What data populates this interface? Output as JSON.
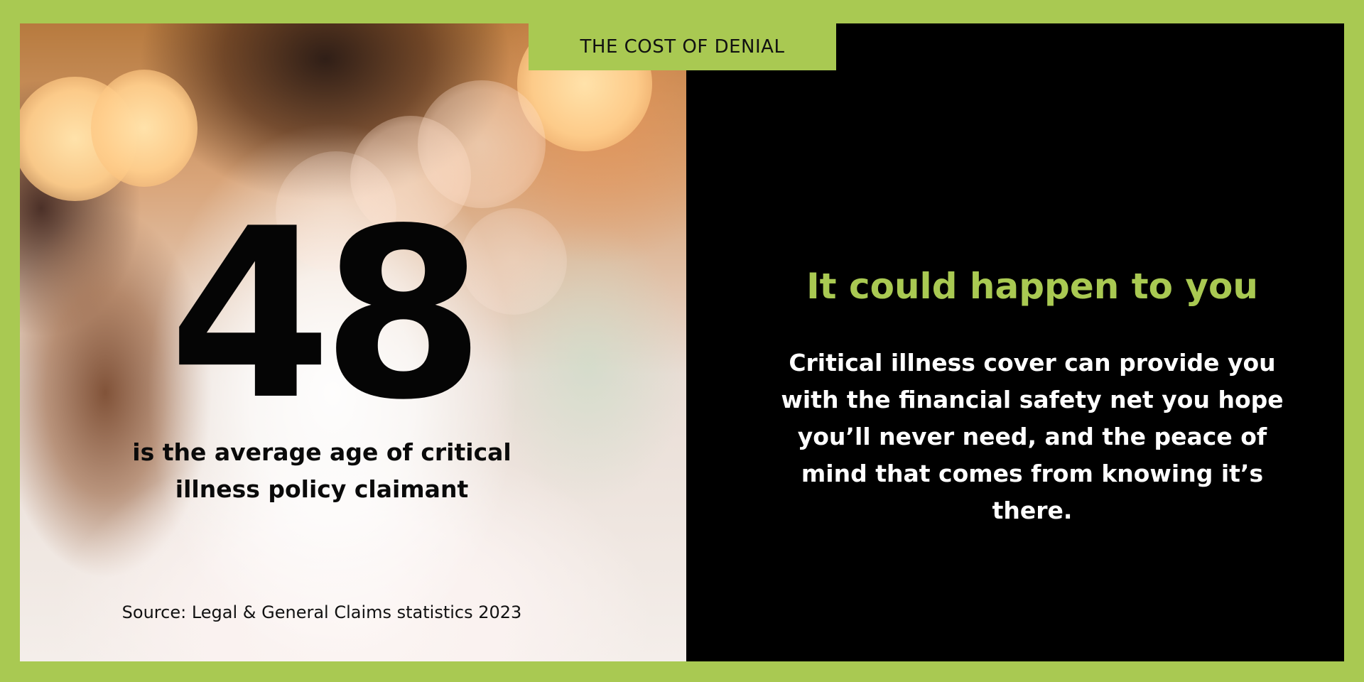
{
  "tab": {
    "label": "THE COST OF DENIAL"
  },
  "stat": {
    "number": "48",
    "caption": "is the average age of critical illness policy claimant",
    "source": "Source: Legal & General Claims statistics 2023"
  },
  "message": {
    "headline": "It could happen to you",
    "body": "Critical illness cover can provide you with the financial safety net you hope you’ll never need, and the peace of mind that comes from knowing it’s there."
  },
  "colors": {
    "accent": "#a9c952",
    "panel": "#000000",
    "text_dark": "#050505",
    "text_light": "#ffffff"
  }
}
